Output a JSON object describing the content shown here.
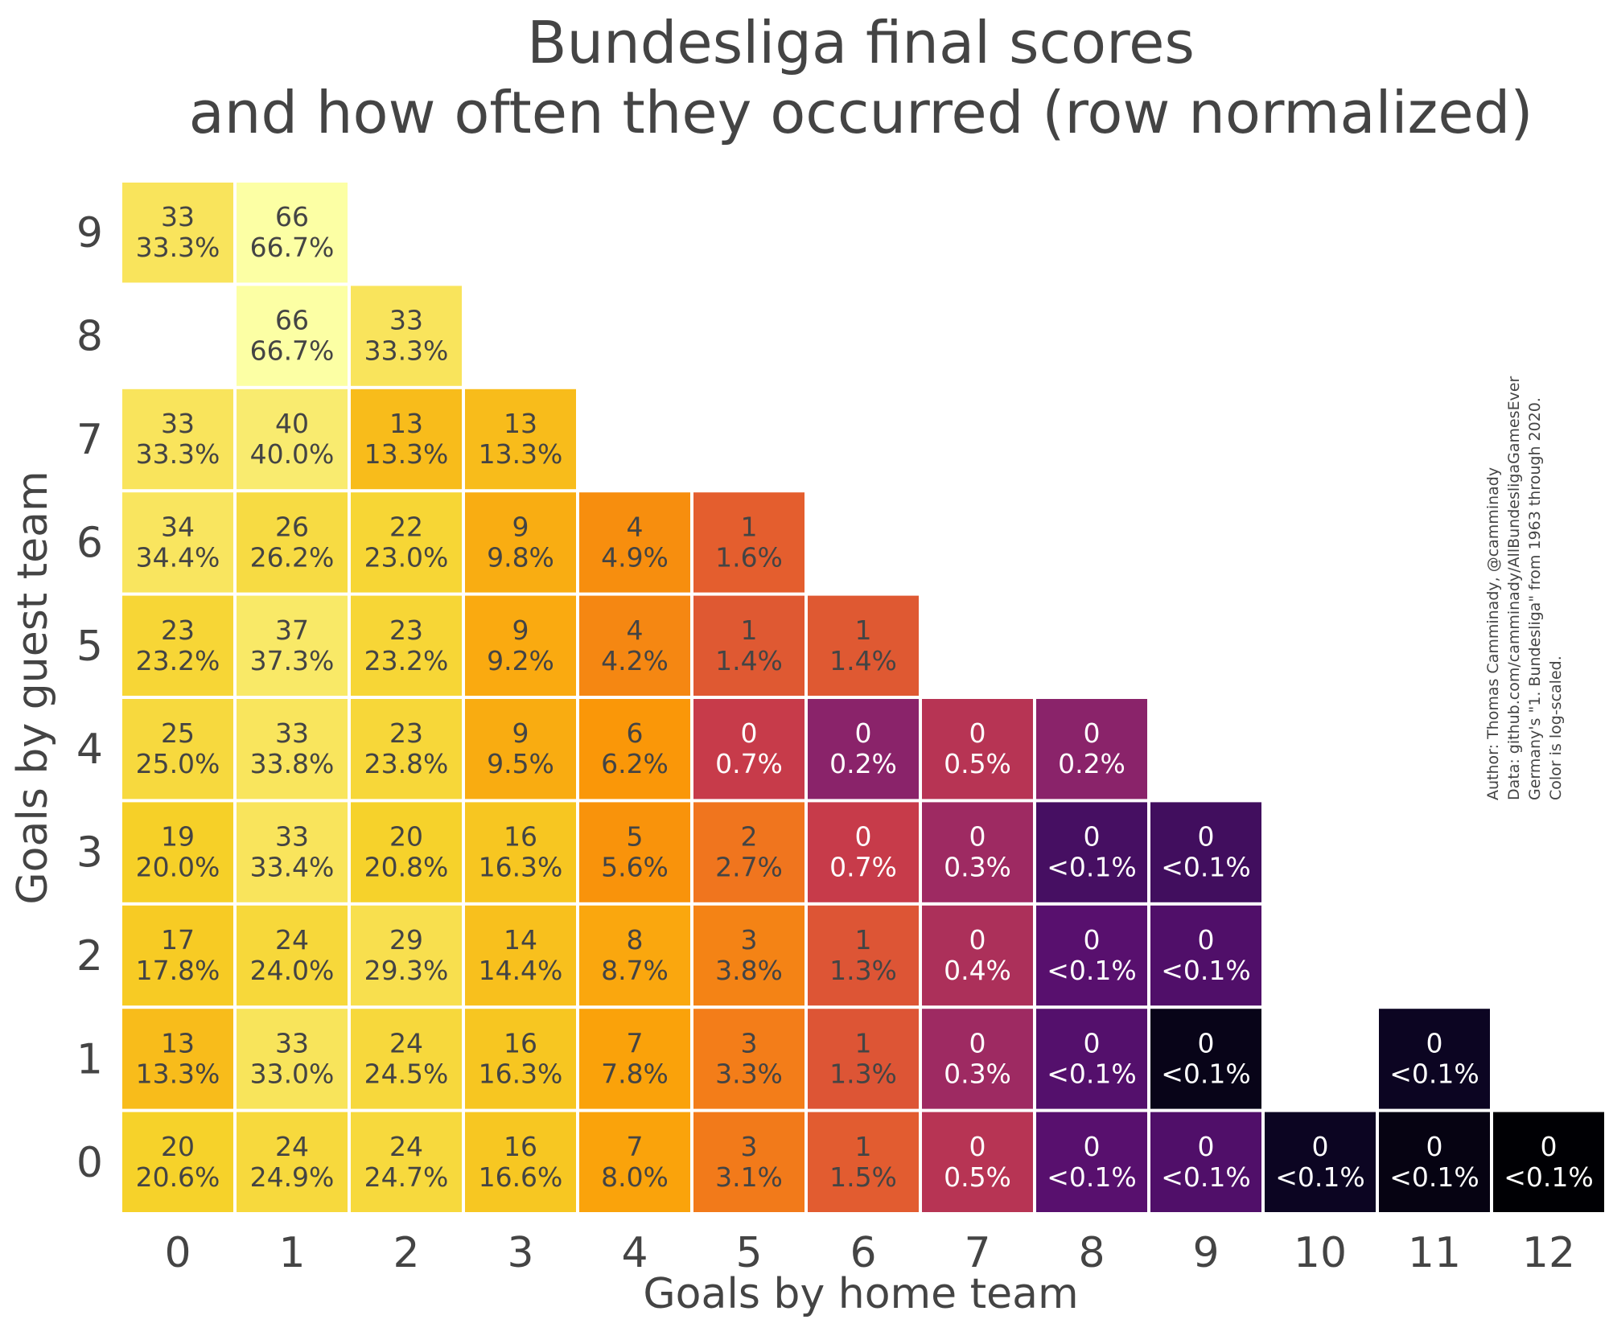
{
  "chart_data": {
    "type": "heatmap",
    "title": [
      "Bundesliga final scores",
      "and how often they occurred (row normalized)"
    ],
    "xlabel": "Goals by home team",
    "ylabel": "Goals by guest team",
    "x_ticks": [
      "0",
      "1",
      "2",
      "3",
      "4",
      "5",
      "6",
      "7",
      "8",
      "9",
      "10",
      "11",
      "12"
    ],
    "y_ticks": [
      "0",
      "1",
      "2",
      "3",
      "4",
      "5",
      "6",
      "7",
      "8",
      "9"
    ],
    "color_scale": "log",
    "colormap": "inferno",
    "cells": [
      {
        "home": 0,
        "guest": 9,
        "count": "33",
        "pct": "33.3%",
        "v": 33.3
      },
      {
        "home": 1,
        "guest": 9,
        "count": "66",
        "pct": "66.7%",
        "v": 66.7
      },
      {
        "home": 1,
        "guest": 8,
        "count": "66",
        "pct": "66.7%",
        "v": 66.7
      },
      {
        "home": 2,
        "guest": 8,
        "count": "33",
        "pct": "33.3%",
        "v": 33.3
      },
      {
        "home": 0,
        "guest": 7,
        "count": "33",
        "pct": "33.3%",
        "v": 33.3
      },
      {
        "home": 1,
        "guest": 7,
        "count": "40",
        "pct": "40.0%",
        "v": 40.0
      },
      {
        "home": 2,
        "guest": 7,
        "count": "13",
        "pct": "13.3%",
        "v": 13.3
      },
      {
        "home": 3,
        "guest": 7,
        "count": "13",
        "pct": "13.3%",
        "v": 13.3
      },
      {
        "home": 0,
        "guest": 6,
        "count": "34",
        "pct": "34.4%",
        "v": 34.4
      },
      {
        "home": 1,
        "guest": 6,
        "count": "26",
        "pct": "26.2%",
        "v": 26.2
      },
      {
        "home": 2,
        "guest": 6,
        "count": "22",
        "pct": "23.0%",
        "v": 23.0
      },
      {
        "home": 3,
        "guest": 6,
        "count": "9",
        "pct": "9.8%",
        "v": 9.8
      },
      {
        "home": 4,
        "guest": 6,
        "count": "4",
        "pct": "4.9%",
        "v": 4.9
      },
      {
        "home": 5,
        "guest": 6,
        "count": "1",
        "pct": "1.6%",
        "v": 1.6
      },
      {
        "home": 0,
        "guest": 5,
        "count": "23",
        "pct": "23.2%",
        "v": 23.2
      },
      {
        "home": 1,
        "guest": 5,
        "count": "37",
        "pct": "37.3%",
        "v": 37.3
      },
      {
        "home": 2,
        "guest": 5,
        "count": "23",
        "pct": "23.2%",
        "v": 23.2
      },
      {
        "home": 3,
        "guest": 5,
        "count": "9",
        "pct": "9.2%",
        "v": 9.2
      },
      {
        "home": 4,
        "guest": 5,
        "count": "4",
        "pct": "4.2%",
        "v": 4.2
      },
      {
        "home": 5,
        "guest": 5,
        "count": "1",
        "pct": "1.4%",
        "v": 1.4
      },
      {
        "home": 6,
        "guest": 5,
        "count": "1",
        "pct": "1.4%",
        "v": 1.4
      },
      {
        "home": 0,
        "guest": 4,
        "count": "25",
        "pct": "25.0%",
        "v": 25.0
      },
      {
        "home": 1,
        "guest": 4,
        "count": "33",
        "pct": "33.8%",
        "v": 33.8
      },
      {
        "home": 2,
        "guest": 4,
        "count": "23",
        "pct": "23.8%",
        "v": 23.8
      },
      {
        "home": 3,
        "guest": 4,
        "count": "9",
        "pct": "9.5%",
        "v": 9.5
      },
      {
        "home": 4,
        "guest": 4,
        "count": "6",
        "pct": "6.2%",
        "v": 6.2
      },
      {
        "home": 5,
        "guest": 4,
        "count": "0",
        "pct": "0.7%",
        "v": 0.7
      },
      {
        "home": 6,
        "guest": 4,
        "count": "0",
        "pct": "0.2%",
        "v": 0.2
      },
      {
        "home": 7,
        "guest": 4,
        "count": "0",
        "pct": "0.5%",
        "v": 0.5
      },
      {
        "home": 8,
        "guest": 4,
        "count": "0",
        "pct": "0.2%",
        "v": 0.2
      },
      {
        "home": 0,
        "guest": 3,
        "count": "19",
        "pct": "20.0%",
        "v": 20.0
      },
      {
        "home": 1,
        "guest": 3,
        "count": "33",
        "pct": "33.4%",
        "v": 33.4
      },
      {
        "home": 2,
        "guest": 3,
        "count": "20",
        "pct": "20.8%",
        "v": 20.8
      },
      {
        "home": 3,
        "guest": 3,
        "count": "16",
        "pct": "16.3%",
        "v": 16.3
      },
      {
        "home": 4,
        "guest": 3,
        "count": "5",
        "pct": "5.6%",
        "v": 5.6
      },
      {
        "home": 5,
        "guest": 3,
        "count": "2",
        "pct": "2.7%",
        "v": 2.7
      },
      {
        "home": 6,
        "guest": 3,
        "count": "0",
        "pct": "0.7%",
        "v": 0.7
      },
      {
        "home": 7,
        "guest": 3,
        "count": "0",
        "pct": "0.3%",
        "v": 0.3
      },
      {
        "home": 8,
        "guest": 3,
        "count": "0",
        "pct": "<0.1%",
        "v": 0.05
      },
      {
        "home": 9,
        "guest": 3,
        "count": "0",
        "pct": "<0.1%",
        "v": 0.045
      },
      {
        "home": 0,
        "guest": 2,
        "count": "17",
        "pct": "17.8%",
        "v": 17.8
      },
      {
        "home": 1,
        "guest": 2,
        "count": "24",
        "pct": "24.0%",
        "v": 24.0
      },
      {
        "home": 2,
        "guest": 2,
        "count": "29",
        "pct": "29.3%",
        "v": 29.3
      },
      {
        "home": 3,
        "guest": 2,
        "count": "14",
        "pct": "14.4%",
        "v": 14.4
      },
      {
        "home": 4,
        "guest": 2,
        "count": "8",
        "pct": "8.7%",
        "v": 8.7
      },
      {
        "home": 5,
        "guest": 2,
        "count": "3",
        "pct": "3.8%",
        "v": 3.8
      },
      {
        "home": 6,
        "guest": 2,
        "count": "1",
        "pct": "1.3%",
        "v": 1.3
      },
      {
        "home": 7,
        "guest": 2,
        "count": "0",
        "pct": "0.4%",
        "v": 0.4
      },
      {
        "home": 8,
        "guest": 2,
        "count": "0",
        "pct": "<0.1%",
        "v": 0.07
      },
      {
        "home": 9,
        "guest": 2,
        "count": "0",
        "pct": "<0.1%",
        "v": 0.06
      },
      {
        "home": 0,
        "guest": 1,
        "count": "13",
        "pct": "13.3%",
        "v": 13.3
      },
      {
        "home": 1,
        "guest": 1,
        "count": "33",
        "pct": "33.0%",
        "v": 33.0
      },
      {
        "home": 2,
        "guest": 1,
        "count": "24",
        "pct": "24.5%",
        "v": 24.5
      },
      {
        "home": 3,
        "guest": 1,
        "count": "16",
        "pct": "16.3%",
        "v": 16.3
      },
      {
        "home": 4,
        "guest": 1,
        "count": "7",
        "pct": "7.8%",
        "v": 7.8
      },
      {
        "home": 5,
        "guest": 1,
        "count": "3",
        "pct": "3.3%",
        "v": 3.3
      },
      {
        "home": 6,
        "guest": 1,
        "count": "1",
        "pct": "1.3%",
        "v": 1.3
      },
      {
        "home": 7,
        "guest": 1,
        "count": "0",
        "pct": "0.3%",
        "v": 0.3
      },
      {
        "home": 8,
        "guest": 1,
        "count": "0",
        "pct": "<0.1%",
        "v": 0.065
      },
      {
        "home": 9,
        "guest": 1,
        "count": "0",
        "pct": "<0.1%",
        "v": 0.01
      },
      {
        "home": 11,
        "guest": 1,
        "count": "0",
        "pct": "<0.1%",
        "v": 0.012
      },
      {
        "home": 0,
        "guest": 0,
        "count": "20",
        "pct": "20.6%",
        "v": 20.6
      },
      {
        "home": 1,
        "guest": 0,
        "count": "24",
        "pct": "24.9%",
        "v": 24.9
      },
      {
        "home": 2,
        "guest": 0,
        "count": "24",
        "pct": "24.7%",
        "v": 24.7
      },
      {
        "home": 3,
        "guest": 0,
        "count": "16",
        "pct": "16.6%",
        "v": 16.6
      },
      {
        "home": 4,
        "guest": 0,
        "count": "7",
        "pct": "8.0%",
        "v": 8.0
      },
      {
        "home": 5,
        "guest": 0,
        "count": "3",
        "pct": "3.1%",
        "v": 3.1
      },
      {
        "home": 6,
        "guest": 0,
        "count": "1",
        "pct": "1.5%",
        "v": 1.5
      },
      {
        "home": 7,
        "guest": 0,
        "count": "0",
        "pct": "0.5%",
        "v": 0.5
      },
      {
        "home": 8,
        "guest": 0,
        "count": "0",
        "pct": "<0.1%",
        "v": 0.07
      },
      {
        "home": 9,
        "guest": 0,
        "count": "0",
        "pct": "<0.1%",
        "v": 0.06
      },
      {
        "home": 10,
        "guest": 0,
        "count": "0",
        "pct": "<0.1%",
        "v": 0.012
      },
      {
        "home": 11,
        "guest": 0,
        "count": "0",
        "pct": "<0.1%",
        "v": 0.009
      },
      {
        "home": 12,
        "guest": 0,
        "count": "0",
        "pct": "<0.1%",
        "v": 0.007
      }
    ],
    "attribution": [
      "Author: Thomas Camminady, @camminady",
      "Data: github.com/camminady/AllBundesligaGamesEver",
      "Germany's \"1. Bundesliga\" from 1963 through 2020.",
      "Color is log-scaled."
    ]
  }
}
